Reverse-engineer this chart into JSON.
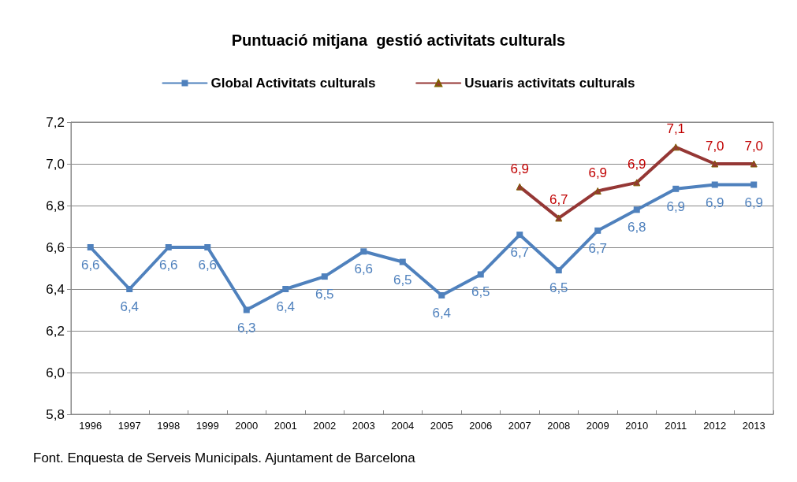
{
  "chart_data": {
    "type": "line",
    "title": "Puntuació mitjana  gestió activitats culturals",
    "categories": [
      "1996",
      "1997",
      "1998",
      "1999",
      "2000",
      "2001",
      "2002",
      "2003",
      "2004",
      "2005",
      "2006",
      "2007",
      "2008",
      "2009",
      "2010",
      "2011",
      "2012",
      "2013"
    ],
    "series": [
      {
        "name": "Global Activitats culturals",
        "color": "#4f81bd",
        "marker": "square",
        "values": [
          6.6,
          6.4,
          6.6,
          6.6,
          6.3,
          6.4,
          6.46,
          6.58,
          6.53,
          6.37,
          6.47,
          6.66,
          6.49,
          6.68,
          6.78,
          6.88,
          6.9,
          6.9
        ],
        "value_labels": [
          "6,6",
          "6,4",
          "6,6",
          "6,6",
          "6,3",
          "6,4",
          "6,5",
          "6,6",
          "6,5",
          "6,4",
          "6,5",
          "6,7",
          "6,5",
          "6,7",
          "6,8",
          "6,9",
          "6,9",
          "6,9"
        ]
      },
      {
        "name": "Usuaris activitats culturals",
        "color": "#953735",
        "marker": "triangle",
        "values": [
          null,
          null,
          null,
          null,
          null,
          null,
          null,
          null,
          null,
          null,
          null,
          6.89,
          6.74,
          6.87,
          6.91,
          7.08,
          7.0,
          7.0
        ],
        "value_labels": [
          null,
          null,
          null,
          null,
          null,
          null,
          null,
          null,
          null,
          null,
          null,
          "6,9",
          "6,7",
          "6,9",
          "6,9",
          "7,1",
          "7,0",
          "7,0"
        ]
      }
    ],
    "ylim": [
      5.8,
      7.2
    ],
    "yticks": [
      {
        "value": 5.8,
        "label": "5,8"
      },
      {
        "value": 6.0,
        "label": "6,0"
      },
      {
        "value": 6.2,
        "label": "6,2"
      },
      {
        "value": 6.4,
        "label": "6,4"
      },
      {
        "value": 6.6,
        "label": "6,6"
      },
      {
        "value": 6.8,
        "label": "6,8"
      },
      {
        "value": 7.0,
        "label": "7,0"
      },
      {
        "value": 7.2,
        "label": "7,2"
      }
    ],
    "grid": "y",
    "legend": "top",
    "line_style": "solid",
    "annotations": [
      "Font. Enquesta de Serveis Municipals. Ajuntament de Barcelona"
    ]
  }
}
